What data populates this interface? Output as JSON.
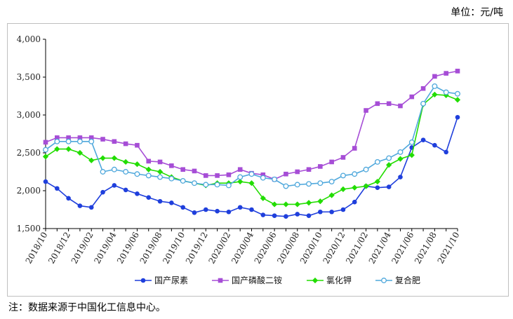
{
  "unit_label": "单位：元/吨",
  "note": "注：数据来源于中国化工信息中心。",
  "chart_data": {
    "type": "line",
    "title": "",
    "xlabel": "",
    "ylabel": "",
    "ylim": [
      1500,
      4000
    ],
    "yticks": [
      1500,
      2000,
      2500,
      3000,
      3500,
      4000
    ],
    "ytick_labels": [
      "1,500",
      "2,000",
      "2,500",
      "3,000",
      "3,500",
      "4,000"
    ],
    "grid": false,
    "legend_position": "bottom",
    "x": [
      "2018/10",
      "2018/11",
      "2018/12",
      "2019/01",
      "2019/02",
      "2019/03",
      "2019/04",
      "2019/05",
      "2019/06",
      "2019/07",
      "2019/08",
      "2019/09",
      "2019/10",
      "2019/11",
      "2019/12",
      "2020/01",
      "2020/02",
      "2020/03",
      "2020/04",
      "2020/05",
      "2020/06",
      "2020/07",
      "2020/08",
      "2020/09",
      "2020/10",
      "2020/11",
      "2020/12",
      "2021/01",
      "2021/02",
      "2021/03",
      "2021/04",
      "2021/05",
      "2021/06",
      "2021/07",
      "2021/08",
      "2021/09",
      "2021/10"
    ],
    "xtick_labels": [
      "2018/10",
      "2018/12",
      "2019/02",
      "2019/04",
      "2019/06",
      "2019/08",
      "2019/10",
      "2019/12",
      "2020/02",
      "2020/04",
      "2020/06",
      "2020/08",
      "2020/10",
      "2020/12",
      "2021/02",
      "2021/04",
      "2021/06",
      "2021/08",
      "2021/10"
    ],
    "series": [
      {
        "name": "国产尿素",
        "color": "#1f3fdc",
        "marker": "circle",
        "values": [
          2120,
          2030,
          1900,
          1800,
          1780,
          1980,
          2070,
          2010,
          1960,
          1910,
          1860,
          1840,
          1780,
          1710,
          1750,
          1730,
          1720,
          1780,
          1750,
          1680,
          1670,
          1660,
          1690,
          1670,
          1720,
          1720,
          1750,
          1850,
          2060,
          2040,
          2050,
          2180,
          2570,
          2670,
          2600,
          2510,
          2970
        ]
      },
      {
        "name": "国产磷酸二铵",
        "color": "#a64dd6",
        "marker": "square",
        "values": [
          2640,
          2700,
          2700,
          2700,
          2700,
          2680,
          2650,
          2620,
          2600,
          2390,
          2380,
          2330,
          2280,
          2260,
          2200,
          2200,
          2210,
          2280,
          2230,
          2210,
          2150,
          2220,
          2250,
          2280,
          2320,
          2380,
          2440,
          2560,
          3060,
          3150,
          3150,
          3120,
          3240,
          3350,
          3510,
          3550,
          3580
        ]
      },
      {
        "name": "氯化钾",
        "color": "#22dd00",
        "marker": "diamond",
        "values": [
          2450,
          2550,
          2550,
          2500,
          2400,
          2430,
          2430,
          2380,
          2350,
          2280,
          2250,
          2180,
          2130,
          2100,
          2070,
          2100,
          2100,
          2120,
          2100,
          1900,
          1820,
          1820,
          1820,
          1840,
          1860,
          1940,
          2020,
          2040,
          2060,
          2120,
          2340,
          2420,
          2470,
          3140,
          3270,
          3260,
          3200
        ]
      },
      {
        "name": "复合肥",
        "color": "#4fa8dc",
        "marker": "open-circle",
        "values": [
          2540,
          2650,
          2650,
          2650,
          2650,
          2250,
          2280,
          2250,
          2220,
          2200,
          2180,
          2160,
          2130,
          2100,
          2080,
          2080,
          2070,
          2180,
          2220,
          2170,
          2150,
          2060,
          2080,
          2090,
          2100,
          2120,
          2200,
          2220,
          2280,
          2380,
          2430,
          2510,
          2640,
          3150,
          3380,
          3300,
          3280
        ]
      }
    ]
  }
}
